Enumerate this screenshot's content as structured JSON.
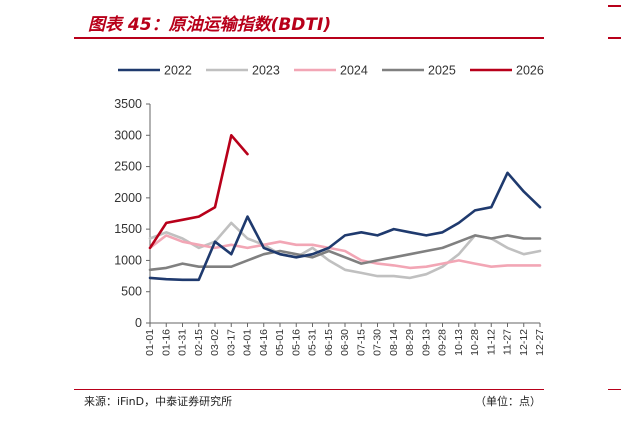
{
  "header": {
    "title": "图表 45：原油运输指数(BDTI)"
  },
  "footer": {
    "source": "来源：iFinD，中泰证券研究所",
    "unit": "（单位：点）"
  },
  "colors": {
    "accent": "#b8001a"
  },
  "chart_data": {
    "type": "line",
    "title": "图表 45：原油运输指数(BDTI)",
    "xlabel": "",
    "ylabel": "",
    "ylim": [
      0,
      3500
    ],
    "yticks": [
      0,
      500,
      1000,
      1500,
      2000,
      2500,
      3000,
      3500
    ],
    "x": [
      "01-01",
      "01-16",
      "01-31",
      "02-15",
      "03-02",
      "03-17",
      "04-01",
      "04-16",
      "05-01",
      "05-16",
      "05-31",
      "06-15",
      "06-30",
      "07-15",
      "07-30",
      "08-14",
      "08-29",
      "09-13",
      "09-28",
      "10-13",
      "10-28",
      "11-12",
      "11-27",
      "12-12",
      "12-27"
    ],
    "grid": false,
    "legend": "top",
    "series": [
      {
        "name": "2022",
        "color": "#1f3a6e",
        "values": [
          720,
          700,
          690,
          690,
          1300,
          1100,
          1700,
          1200,
          1100,
          1050,
          1100,
          1200,
          1400,
          1450,
          1400,
          1500,
          1450,
          1400,
          1450,
          1600,
          1800,
          1850,
          2400,
          2100,
          1850
        ]
      },
      {
        "name": "2023",
        "color": "#c0c0c0",
        "values": [
          1350,
          1450,
          1350,
          1200,
          1300,
          1600,
          1350,
          1250,
          1100,
          1050,
          1200,
          1000,
          850,
          800,
          750,
          750,
          720,
          780,
          900,
          1100,
          1400,
          1350,
          1200,
          1100,
          1150
        ]
      },
      {
        "name": "2024",
        "color": "#f2a6b5",
        "values": [
          1200,
          1400,
          1300,
          1250,
          1200,
          1250,
          1200,
          1250,
          1300,
          1250,
          1250,
          1200,
          1150,
          1000,
          950,
          920,
          880,
          900,
          950,
          1000,
          950,
          900,
          920,
          920,
          920
        ]
      },
      {
        "name": "2025",
        "color": "#808080",
        "values": [
          850,
          880,
          950,
          900,
          900,
          900,
          1000,
          1100,
          1150,
          1100,
          1050,
          1150,
          1050,
          950,
          1000,
          1050,
          1100,
          1150,
          1200,
          1300,
          1400,
          1350,
          1400,
          1350,
          1350
        ]
      },
      {
        "name": "2026",
        "color": "#b8001a",
        "values": [
          1200,
          1600,
          1650,
          1700,
          1850,
          3000,
          2700,
          null,
          null,
          null,
          null,
          null,
          null,
          null,
          null,
          null,
          null,
          null,
          null,
          null,
          null,
          null,
          null,
          null,
          null
        ]
      }
    ]
  }
}
